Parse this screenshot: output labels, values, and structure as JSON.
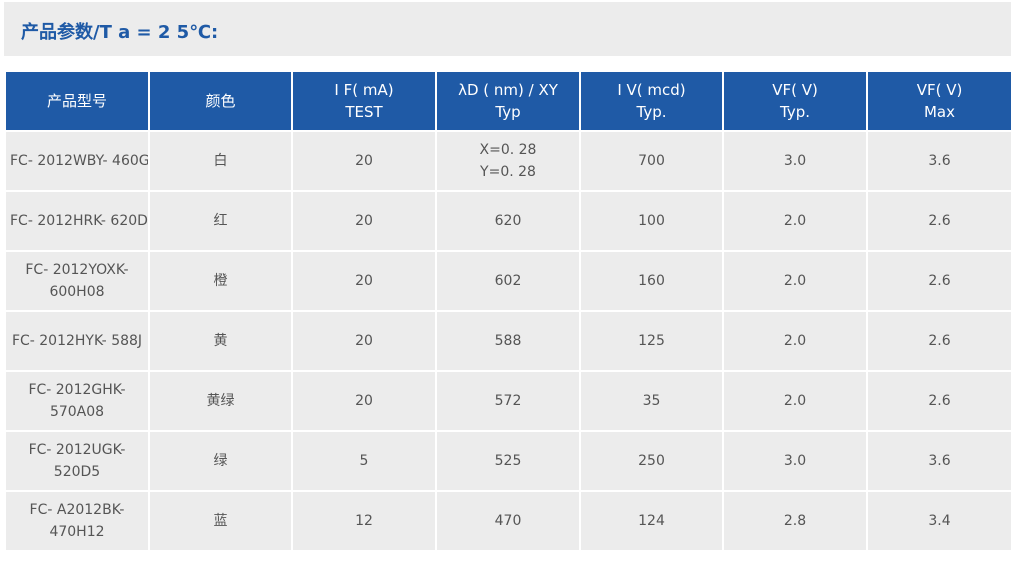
{
  "title": "产品参数/T a = 2 5℃:",
  "columns": [
    {
      "line1": "产品型号",
      "line2": ""
    },
    {
      "line1": "颜色",
      "line2": ""
    },
    {
      "line1": "I F( mA)",
      "line2": "TEST"
    },
    {
      "line1": "λD ( nm) / XY",
      "line2": "Typ"
    },
    {
      "line1": "I V( mcd)",
      "line2": "Typ."
    },
    {
      "line1": "VF( V)",
      "line2": "Typ."
    },
    {
      "line1": "VF( V)",
      "line2": "Max"
    }
  ],
  "rows": [
    {
      "model": [
        "FC- 2012WBY- 460G",
        ""
      ],
      "color": "白",
      "if": "20",
      "wavelength": [
        "X=0. 28",
        "Y=0. 28"
      ],
      "iv": "700",
      "vf_typ": "3.0",
      "vf_max": "3.6"
    },
    {
      "model": [
        "FC- 2012HRK- 620D",
        ""
      ],
      "color": "红",
      "if": "20",
      "wavelength": [
        "620",
        ""
      ],
      "iv": "100",
      "vf_typ": "2.0",
      "vf_max": "2.6"
    },
    {
      "model": [
        "FC- 2012YOXK-",
        "600H08"
      ],
      "color": "橙",
      "if": "20",
      "wavelength": [
        "602",
        ""
      ],
      "iv": "160",
      "vf_typ": "2.0",
      "vf_max": "2.6"
    },
    {
      "model": [
        "FC- 2012HYK- 588J",
        ""
      ],
      "color": "黄",
      "if": "20",
      "wavelength": [
        "588",
        ""
      ],
      "iv": "125",
      "vf_typ": "2.0",
      "vf_max": "2.6"
    },
    {
      "model": [
        "FC- 2012GHK-",
        "570A08"
      ],
      "color": "黄绿",
      "if": "20",
      "wavelength": [
        "572",
        ""
      ],
      "iv": "35",
      "vf_typ": "2.0",
      "vf_max": "2.6"
    },
    {
      "model": [
        "FC- 2012UGK-",
        "520D5"
      ],
      "color": "绿",
      "if": "5",
      "wavelength": [
        "525",
        ""
      ],
      "iv": "250",
      "vf_typ": "3.0",
      "vf_max": "3.6"
    },
    {
      "model": [
        "FC- A2012BK-",
        "470H12"
      ],
      "color": "蓝",
      "if": "12",
      "wavelength": [
        "470",
        ""
      ],
      "iv": "124",
      "vf_typ": "2.8",
      "vf_max": "3.4"
    }
  ],
  "colors": {
    "header_bg": "#1f5aa6",
    "cell_bg": "#ececec",
    "title_text": "#1f5aa6"
  }
}
